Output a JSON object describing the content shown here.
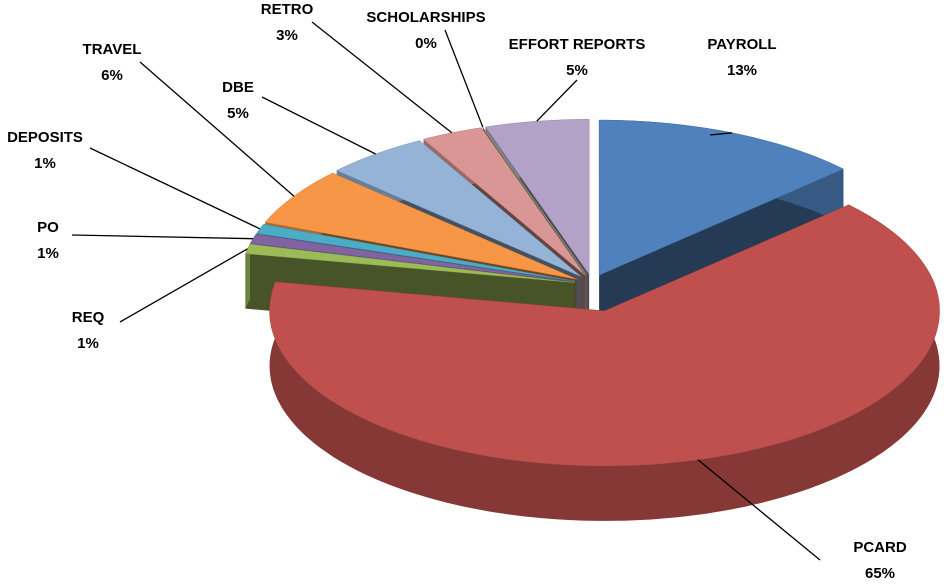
{
  "chart_data": {
    "type": "pie",
    "categories": [
      "PAYROLL",
      "PCARD",
      "REQ",
      "PO",
      "DEPOSITS",
      "TRAVEL",
      "DBE",
      "RETRO",
      "SCHOLARSHIPS",
      "EFFORT REPORTS"
    ],
    "values": [
      13,
      65,
      1,
      1,
      1,
      6,
      5,
      3,
      0,
      5
    ],
    "value_labels": [
      "13%",
      "65%",
      "1%",
      "1%",
      "1%",
      "6%",
      "5%",
      "3%",
      "0%",
      "5%"
    ],
    "colors": [
      "#4f81bd",
      "#c0504d",
      "#9bbb59",
      "#8064a2",
      "#4bacc6",
      "#f79646",
      "#95b3d7",
      "#d99694",
      "#c3d69b",
      "#b3a2c7"
    ]
  }
}
